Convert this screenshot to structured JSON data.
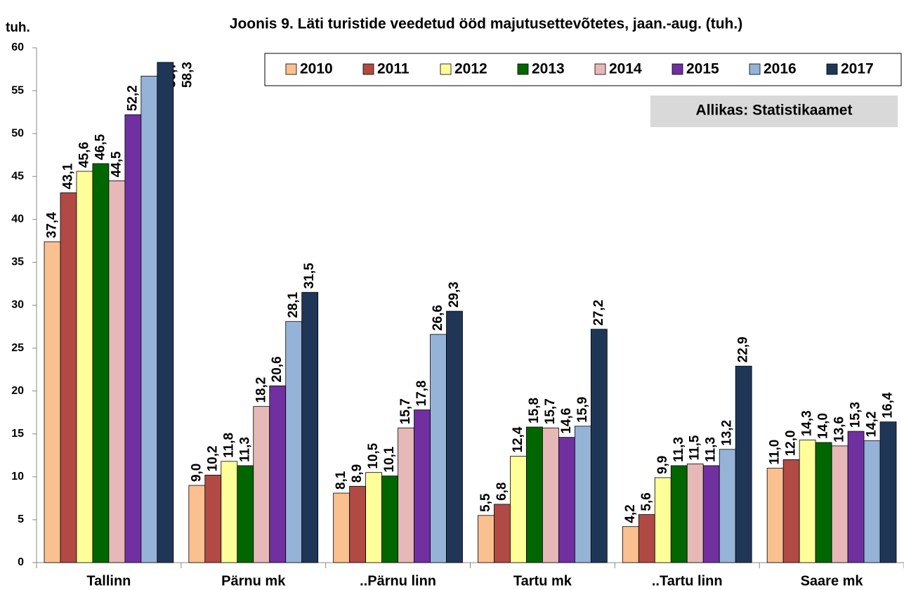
{
  "chart_data": {
    "type": "bar",
    "title": "Joonis 9. Läti turistide veedetud ööd majutusettevõtetes, jaan.-aug. (tuh.)",
    "y_label": "tuh.",
    "annotation": "Allikas: Statistikaamet",
    "legend": "top-right",
    "categories": [
      "Tallinn",
      "Pärnu mk",
      "..Pärnu linn",
      "Tartu mk",
      "..Tartu linn",
      "Saare mk"
    ],
    "ylim": [
      0,
      60
    ],
    "yticks": [
      0,
      5,
      10,
      15,
      20,
      25,
      30,
      35,
      40,
      45,
      50,
      55,
      60
    ],
    "series": [
      {
        "name": "2010",
        "color": "#fac090",
        "values": [
          37.4,
          9.0,
          8.1,
          5.5,
          4.2,
          11.0
        ],
        "value_labels": [
          "37,4",
          "9,0",
          "8,1",
          "5,5",
          "4,2",
          "11,0"
        ]
      },
      {
        "name": "2011",
        "color": "#b14a44",
        "values": [
          43.1,
          10.2,
          8.9,
          6.8,
          5.6,
          12.0
        ],
        "value_labels": [
          "43,1",
          "10,2",
          "8,9",
          "6,8",
          "5,6",
          "12,0"
        ]
      },
      {
        "name": "2012",
        "color": "#ffff99",
        "values": [
          45.6,
          11.8,
          10.5,
          12.4,
          9.9,
          14.3
        ],
        "value_labels": [
          "45,6",
          "11,8",
          "10,5",
          "12,4",
          "9,9",
          "14,3"
        ]
      },
      {
        "name": "2013",
        "color": "#006600",
        "values": [
          46.5,
          11.3,
          10.1,
          15.8,
          11.3,
          14.0
        ],
        "value_labels": [
          "46,5",
          "11,3",
          "10,1",
          "15,8",
          "11,3",
          "14,0"
        ]
      },
      {
        "name": "2014",
        "color": "#e6b8b7",
        "values": [
          44.5,
          18.2,
          15.7,
          15.7,
          11.5,
          13.6
        ],
        "value_labels": [
          "44,5",
          "18,2",
          "15,7",
          "15,7",
          "11,5",
          "13,6"
        ]
      },
      {
        "name": "2015",
        "color": "#7030a0",
        "values": [
          52.2,
          20.6,
          17.8,
          14.6,
          11.3,
          15.3
        ],
        "value_labels": [
          "52,2",
          "20,6",
          "17,8",
          "14,6",
          "11,3",
          "15,3"
        ]
      },
      {
        "name": "2016",
        "color": "#95b3d7",
        "values": [
          56.7,
          28.1,
          26.6,
          15.9,
          13.2,
          14.2
        ],
        "value_labels": [
          "56,7",
          "28,1",
          "26,6",
          "15,9",
          "13,2",
          "14,2"
        ]
      },
      {
        "name": "2017",
        "color": "#1f3657",
        "values": [
          58.3,
          31.5,
          29.3,
          27.2,
          22.9,
          16.4
        ],
        "value_labels": [
          "58,3",
          "31,5",
          "29,3",
          "27,2",
          "22,9",
          "16,4"
        ]
      }
    ]
  }
}
